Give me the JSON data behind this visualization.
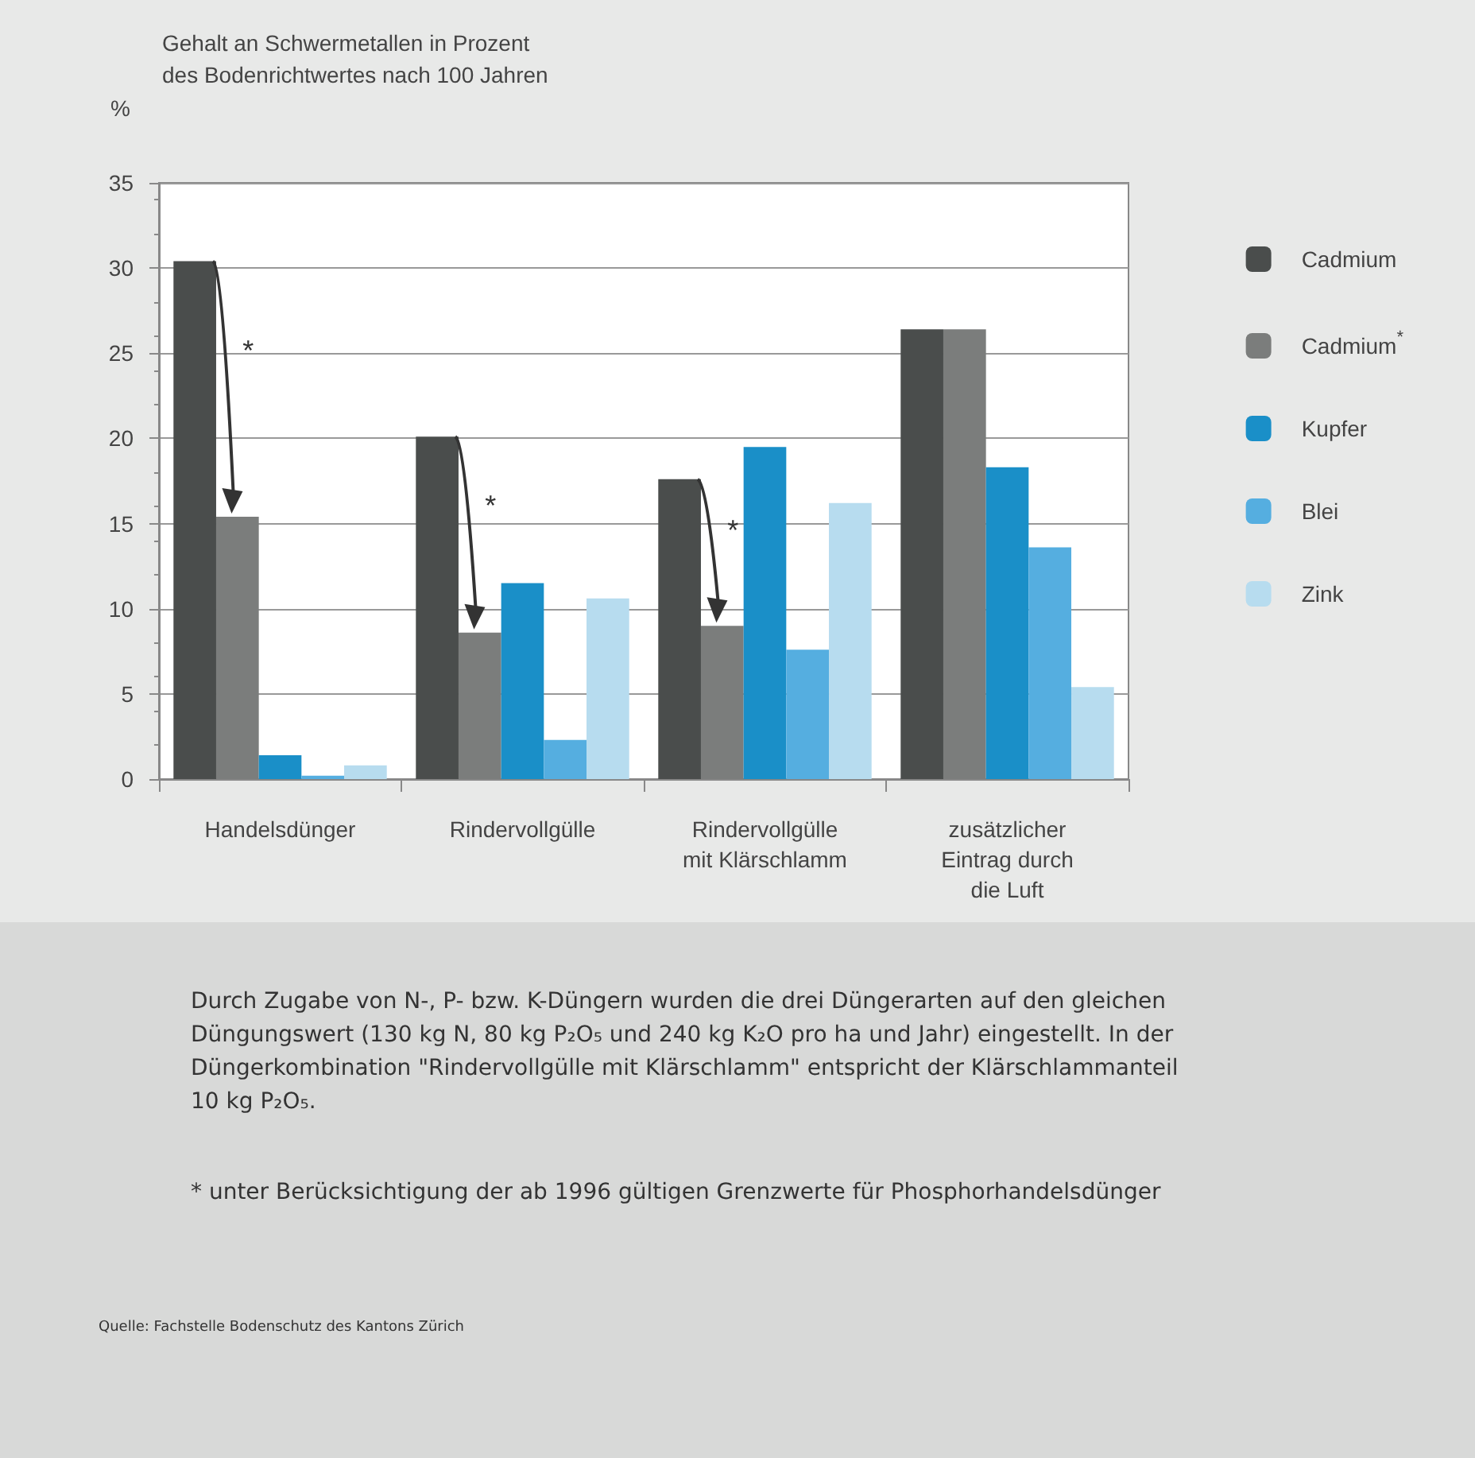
{
  "chart_data": {
    "type": "bar",
    "title": "Gehalt an Schwermetallen in Prozent\ndes Bodenrichtwertes nach 100 Jahren",
    "ylabel": "%",
    "categories": [
      "Handelsdünger",
      "Rindervollgülle",
      "Rindervollgülle\nmit Klärschlamm",
      "zusätzlicher\nEintrag durch\ndie Luft"
    ],
    "series": [
      {
        "name": "Cadmium",
        "color": "#4a4d4c",
        "values": [
          30.4,
          20.1,
          17.6,
          26.4
        ]
      },
      {
        "name": "Cadmium$^{*}$",
        "color": "#7b7d7c",
        "values": [
          15.4,
          8.6,
          9.0,
          26.4
        ]
      },
      {
        "name": "Kupfer",
        "color": "#1a8fc8",
        "values": [
          1.4,
          11.5,
          19.5,
          18.3
        ]
      },
      {
        "name": "Blei",
        "color": "#55aee0",
        "values": [
          0.2,
          2.3,
          7.6,
          13.6
        ]
      },
      {
        "name": "Zink",
        "color": "#b7dcef",
        "values": [
          0.8,
          10.6,
          16.2,
          5.4
        ]
      }
    ],
    "ylim": [
      0,
      35
    ],
    "yticks": [
      0,
      5,
      10,
      15,
      20,
      25,
      30,
      35
    ],
    "grid": "y",
    "legend": "right",
    "annotations": [
      "*",
      "*",
      "*",
      "Durch Zugabe von N-, P- bzw. K-Düngern wurden die drei Düngerarten auf den gleichen Düngungswert (130 kg N, 80 kg P₂O₅ und 240 kg K₂O pro ha und Jahr) eingestellt. In der Düngerkombination \"Rindervollgülle mit Klärschlamm\" entspricht der Klärschlammanteil 10 kg P₂O₅.",
      "* unter Berücksichtigung der ab 1996 gültigen Grenzwerte für Phosphorhandelsdünger",
      "Quelle: Fachstelle Bodenschutz des Kantons Zürich"
    ]
  }
}
